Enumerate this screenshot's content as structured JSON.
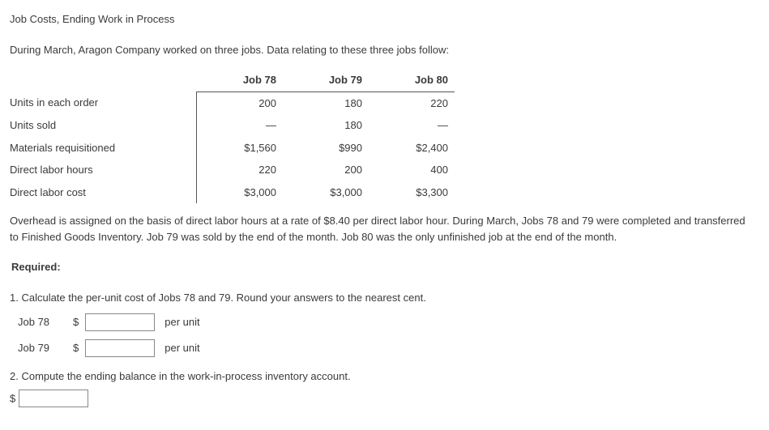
{
  "title": "Job Costs, Ending Work in Process",
  "intro": "During March, Aragon Company worked on three jobs. Data relating to these three jobs follow:",
  "table": {
    "headers": {
      "c1": "Job 78",
      "c2": "Job 79",
      "c3": "Job 80"
    },
    "rows": {
      "r1": {
        "label": "Units in each order",
        "c1": "200",
        "c2": "180",
        "c3": "220"
      },
      "r2": {
        "label": "Units sold",
        "c1": "—",
        "c2": "180",
        "c3": "—"
      },
      "r3": {
        "label": "Materials requisitioned",
        "c1": "$1,560",
        "c2": "$990",
        "c3": "$2,400"
      },
      "r4": {
        "label": "Direct labor hours",
        "c1": "220",
        "c2": "200",
        "c3": "400"
      },
      "r5": {
        "label": "Direct labor cost",
        "c1": "$3,000",
        "c2": "$3,000",
        "c3": "$3,300"
      }
    }
  },
  "body_text": "Overhead is assigned on the basis of direct labor hours at a rate of $8.40 per direct labor hour. During March, Jobs 78 and 79 were completed and transferred to Finished Goods Inventory. Job 79 was sold by the end of the month. Job 80 was the only unfinished job at the end of the month.",
  "required_label": "Required:",
  "q1": {
    "text": "1. Calculate the per-unit cost of Jobs 78 and 79. Round your answers to the nearest cent.",
    "rows": {
      "a": {
        "label": "Job 78",
        "currency": "$",
        "unit": "per unit"
      },
      "b": {
        "label": "Job 79",
        "currency": "$",
        "unit": "per unit"
      }
    }
  },
  "q2": {
    "text": "2. Compute the ending balance in the work-in-process inventory account.",
    "currency": "$"
  }
}
